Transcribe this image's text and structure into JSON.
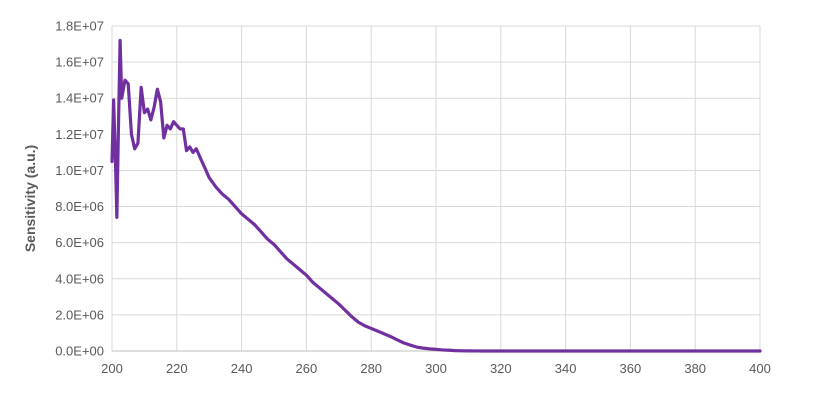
{
  "chart_data": {
    "type": "line",
    "title": "",
    "xlabel": "",
    "ylabel": "Sensitivity (a.u.)",
    "xlim": [
      200,
      400
    ],
    "ylim": [
      0,
      18000000
    ],
    "grid": true,
    "x_ticks": [
      200,
      220,
      240,
      260,
      280,
      300,
      320,
      340,
      360,
      380,
      400
    ],
    "x_tick_labels": [
      "200",
      "220",
      "240",
      "260",
      "280",
      "300",
      "320",
      "340",
      "360",
      "380",
      "400"
    ],
    "y_ticks": [
      0,
      2000000,
      4000000,
      6000000,
      8000000,
      10000000,
      12000000,
      14000000,
      16000000,
      18000000
    ],
    "y_tick_labels": [
      "0.0E+00",
      "2.0E+06",
      "4.0E+06",
      "6.0E+06",
      "8.0E+06",
      "1.0E+07",
      "1.2E+07",
      "1.4E+07",
      "1.6E+07",
      "1.8E+07"
    ],
    "series": [
      {
        "color": "#7030a0",
        "x": [
          200,
          200.5,
          201,
          201.5,
          202,
          202.5,
          203,
          203.5,
          204,
          205,
          206,
          207,
          208,
          209,
          210,
          211,
          212,
          213,
          214,
          215,
          216,
          217,
          218,
          219,
          220,
          221,
          222,
          223,
          224,
          225,
          226,
          227,
          228,
          229,
          230,
          232,
          234,
          236,
          238,
          240,
          242,
          244,
          246,
          248,
          250,
          252,
          254,
          256,
          258,
          260,
          262,
          264,
          266,
          268,
          270,
          272,
          274,
          276,
          278,
          280,
          282,
          284,
          286,
          288,
          290,
          292,
          294,
          296,
          298,
          300,
          302,
          304,
          306,
          308,
          310,
          312,
          313,
          314,
          316,
          318,
          320,
          325,
          330,
          340,
          350,
          360,
          370,
          380,
          390,
          400
        ],
        "y": [
          10500000,
          13900000,
          11000000,
          7400000,
          12500000,
          17200000,
          14000000,
          14500000,
          15000000,
          14800000,
          12000000,
          11200000,
          11500000,
          14600000,
          13200000,
          13400000,
          12800000,
          13500000,
          14500000,
          13800000,
          11800000,
          12500000,
          12300000,
          12700000,
          12500000,
          12300000,
          12300000,
          11100000,
          11300000,
          11000000,
          11200000,
          10800000,
          10400000,
          10000000,
          9600000,
          9100000,
          8700000,
          8400000,
          8000000,
          7600000,
          7300000,
          7000000,
          6600000,
          6200000,
          5900000,
          5500000,
          5100000,
          4800000,
          4500000,
          4200000,
          3800000,
          3500000,
          3200000,
          2900000,
          2600000,
          2250000,
          1900000,
          1600000,
          1400000,
          1250000,
          1100000,
          950000,
          800000,
          620000,
          450000,
          330000,
          220000,
          160000,
          120000,
          90000,
          60000,
          40000,
          20000,
          10000,
          5000,
          3000,
          2000,
          1500,
          1000,
          800,
          500,
          300,
          200,
          100,
          60,
          40,
          20,
          10,
          5,
          0
        ]
      }
    ]
  }
}
